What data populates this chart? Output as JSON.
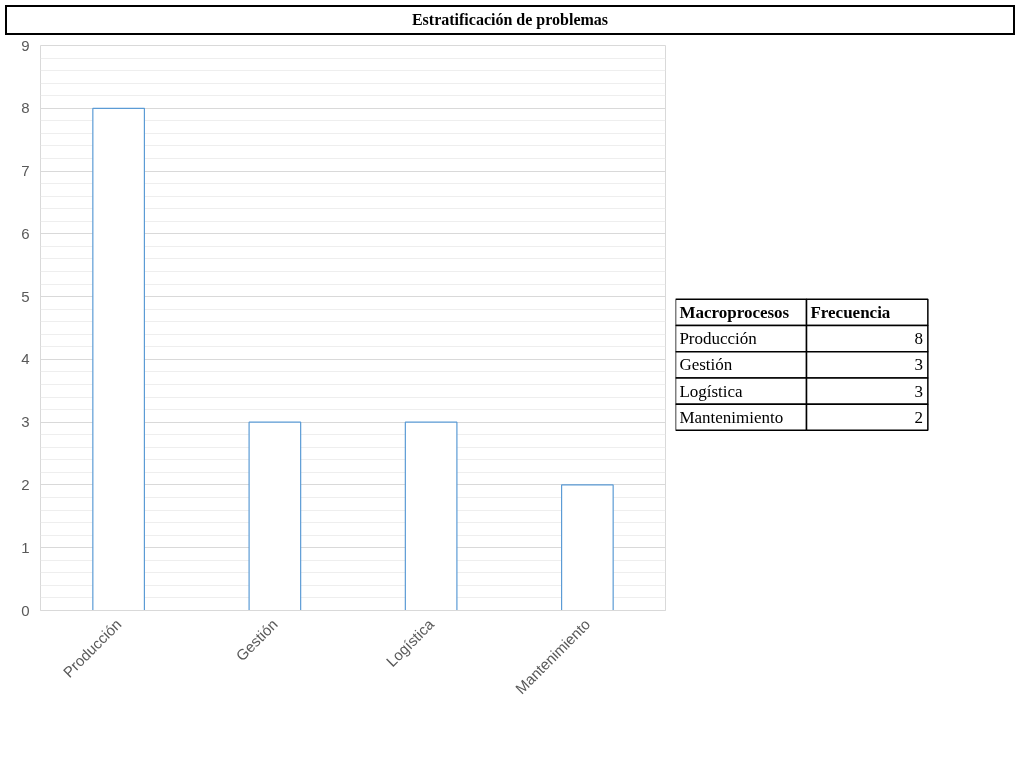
{
  "chart_data": [
    {
      "type": "bar",
      "title": "Estratificación de problemas",
      "categories": [
        "Producción",
        "Gestión",
        "Logística",
        "Mantenimiento"
      ],
      "values": [
        8,
        3,
        3,
        2
      ],
      "color": "#5b9bd5",
      "ylim": [
        0,
        9
      ],
      "yticks": [
        0,
        1,
        2,
        3,
        4,
        5,
        6,
        7,
        8,
        9
      ],
      "grid": "y"
    },
    {
      "type": "other",
      "categories": [
        "Producción",
        "Gestión",
        "Logística",
        "Mantenimiento"
      ],
      "values": [
        8,
        3,
        3,
        2
      ],
      "value_labels": [
        "8",
        "3",
        "3",
        "2"
      ],
      "annotations": [
        "Macroprocesos",
        "Frecuencia"
      ]
    }
  ]
}
